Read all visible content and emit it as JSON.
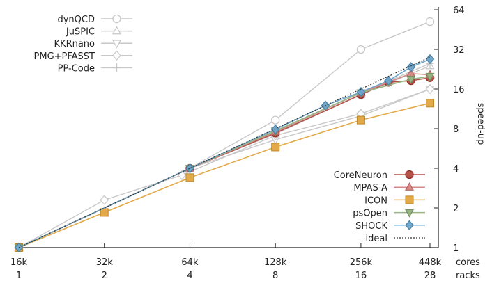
{
  "chart_data": {
    "type": "line",
    "title": "",
    "xscale": "log2",
    "yscale": "log2",
    "ylabel": "speed-up",
    "xlabel_line1": "cores",
    "xlabel_line2": "racks",
    "x_ticks": [
      {
        "cores": 16,
        "label": "16k",
        "racks": "1"
      },
      {
        "cores": 32,
        "label": "32k",
        "racks": "2"
      },
      {
        "cores": 64,
        "label": "64k",
        "racks": "4"
      },
      {
        "cores": 128,
        "label": "128k",
        "racks": "8"
      },
      {
        "cores": 256,
        "label": "256k",
        "racks": "16"
      },
      {
        "cores": 448,
        "label": "448k",
        "racks": "28"
      }
    ],
    "y_ticks": [
      {
        "value": 1,
        "label": "1"
      },
      {
        "value": 2,
        "label": "2"
      },
      {
        "value": 4,
        "label": "4"
      },
      {
        "value": 8,
        "label": "8"
      },
      {
        "value": 16,
        "label": "16"
      },
      {
        "value": 32,
        "label": "32"
      },
      {
        "value": 64,
        "label": "64"
      }
    ],
    "xlim": [
      16,
      448
    ],
    "ylim": [
      1,
      64
    ],
    "grid": false,
    "legend_top": "top-left",
    "legend_bottom": "bottom-right",
    "series": [
      {
        "name": "dynQCD",
        "legend": "top",
        "color": "#c8c8c8",
        "marker": "circle-open",
        "points": [
          [
            16,
            1
          ],
          [
            64,
            4
          ],
          [
            128,
            9.3
          ],
          [
            256,
            32
          ],
          [
            448,
            52
          ]
        ]
      },
      {
        "name": "JuSPIC",
        "legend": "top",
        "color": "#c8c8c8",
        "marker": "triangle-up-open",
        "points": [
          [
            16,
            1
          ],
          [
            64,
            4
          ],
          [
            128,
            7.3
          ],
          [
            256,
            14.5
          ],
          [
            448,
            24
          ]
        ]
      },
      {
        "name": "KKRnano",
        "legend": "top",
        "color": "#c8c8c8",
        "marker": "triangle-down-open",
        "points": [
          [
            16,
            1
          ],
          [
            64,
            4
          ],
          [
            128,
            6.6
          ],
          [
            256,
            10
          ],
          [
            448,
            16
          ]
        ]
      },
      {
        "name": "PMG+PFASST",
        "legend": "top",
        "color": "#c8c8c8",
        "marker": "diamond-open",
        "points": [
          [
            16,
            1
          ],
          [
            32,
            2.3
          ],
          [
            60,
            3.55
          ],
          [
            128,
            7.1
          ],
          [
            256,
            10.4
          ],
          [
            448,
            16
          ]
        ]
      },
      {
        "name": "PP-Code",
        "legend": "top",
        "color": "#c8c8c8",
        "marker": "plus",
        "points": [
          [
            16,
            1
          ],
          [
            64,
            4
          ],
          [
            128,
            7.5
          ],
          [
            256,
            15
          ],
          [
            448,
            25
          ]
        ]
      },
      {
        "name": "CoreNeuron",
        "legend": "bottom",
        "color": "#b5524a",
        "marker": "circle",
        "points": [
          [
            16,
            1
          ],
          [
            64,
            4
          ],
          [
            128,
            7.4
          ],
          [
            256,
            14.5
          ],
          [
            320,
            18
          ],
          [
            384,
            18.5
          ],
          [
            448,
            19.5
          ]
        ]
      },
      {
        "name": "MPAS-A",
        "legend": "bottom",
        "color": "#d48a85",
        "marker": "triangle-up",
        "points": [
          [
            16,
            1
          ],
          [
            64,
            4
          ],
          [
            128,
            7.6
          ],
          [
            256,
            15
          ],
          [
            384,
            21
          ],
          [
            448,
            20.5
          ]
        ]
      },
      {
        "name": "ICON",
        "legend": "bottom",
        "color": "#e3aa4a",
        "marker": "square",
        "points": [
          [
            16,
            1
          ],
          [
            32,
            1.85
          ],
          [
            64,
            3.4
          ],
          [
            128,
            5.8
          ],
          [
            256,
            9.3
          ],
          [
            448,
            12.5
          ]
        ]
      },
      {
        "name": "psOpen",
        "legend": "bottom",
        "color": "#98b585",
        "marker": "triangle-down",
        "points": [
          [
            16,
            1
          ],
          [
            64,
            4
          ],
          [
            128,
            7.7
          ],
          [
            256,
            15
          ],
          [
            384,
            19
          ],
          [
            448,
            20
          ]
        ]
      },
      {
        "name": "SHOCK",
        "legend": "bottom",
        "color": "#6ea5c8",
        "marker": "diamond",
        "points": [
          [
            16,
            1
          ],
          [
            64,
            4
          ],
          [
            128,
            7.9
          ],
          [
            192,
            12
          ],
          [
            256,
            15.2
          ],
          [
            320,
            18.5
          ],
          [
            384,
            23.5
          ],
          [
            448,
            27
          ]
        ]
      },
      {
        "name": "ideal",
        "legend": "bottom",
        "color": "#333333",
        "marker": "none",
        "dashed": true,
        "points": [
          [
            16,
            1
          ],
          [
            448,
            28
          ]
        ]
      }
    ]
  }
}
